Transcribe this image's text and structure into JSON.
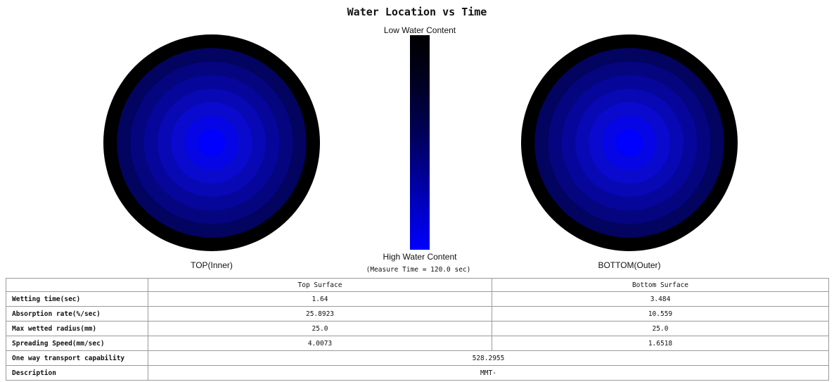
{
  "title": "Water Location vs Time",
  "legend": {
    "top_label": "Low Water Content",
    "bottom_label": "High Water Content",
    "measure_note": "(Measure Time = 120.0 sec)",
    "colors": [
      "#000000",
      "#0000ff"
    ]
  },
  "chart_data": [
    {
      "type": "heatmap",
      "title": "TOP(Inner)",
      "rings": [
        {
          "ring": 1,
          "color": "#0000ff"
        },
        {
          "ring": 2,
          "color": "#0505e6"
        },
        {
          "ring": 3,
          "color": "#0a0acf"
        },
        {
          "ring": 4,
          "color": "#0808b5"
        },
        {
          "ring": 5,
          "color": "#06069a"
        },
        {
          "ring": 6,
          "color": "#05057f"
        },
        {
          "ring": 7,
          "color": "#030360"
        },
        {
          "ring": 8,
          "color": "#000000"
        }
      ]
    },
    {
      "type": "heatmap",
      "title": "BOTTOM(Outer)",
      "rings": [
        {
          "ring": 1,
          "color": "#0000ff"
        },
        {
          "ring": 2,
          "color": "#0505e6"
        },
        {
          "ring": 3,
          "color": "#0a0acf"
        },
        {
          "ring": 4,
          "color": "#0808b5"
        },
        {
          "ring": 5,
          "color": "#06069a"
        },
        {
          "ring": 6,
          "color": "#05057f"
        },
        {
          "ring": 7,
          "color": "#030360"
        },
        {
          "ring": 8,
          "color": "#000000"
        }
      ]
    }
  ],
  "table": {
    "headers": [
      "",
      "Top Surface",
      "Bottom Surface"
    ],
    "rows": [
      {
        "label": "Wetting time(sec)",
        "top": "1.64",
        "bottom": "3.484"
      },
      {
        "label": "Absorption rate(%/sec)",
        "top": "25.8923",
        "bottom": "10.559"
      },
      {
        "label": "Max wetted radius(mm)",
        "top": "25.0",
        "bottom": "25.0"
      },
      {
        "label": "Spreading Speed(mm/sec)",
        "top": "4.0073",
        "bottom": "1.6518"
      }
    ],
    "spanning_rows": [
      {
        "label": "One way transport capability",
        "value": "528.2955"
      },
      {
        "label": "Description",
        "value": "MMT-"
      }
    ]
  }
}
